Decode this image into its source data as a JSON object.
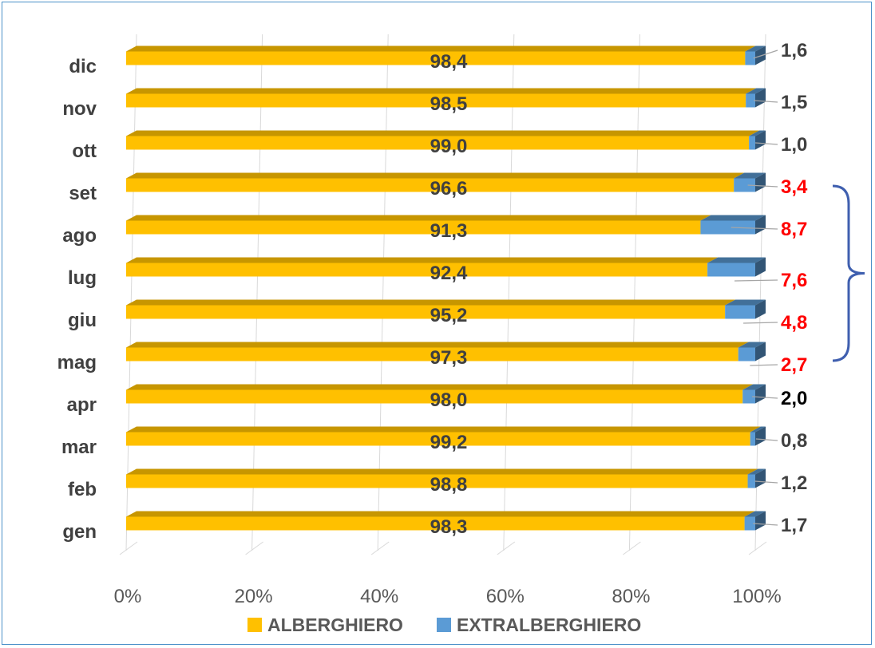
{
  "chart_data": {
    "type": "bar",
    "orientation": "horizontal",
    "stacked": "percent",
    "style": "3d",
    "categories": [
      "gen",
      "feb",
      "mar",
      "apr",
      "mag",
      "giu",
      "lug",
      "ago",
      "set",
      "ott",
      "nov",
      "dic"
    ],
    "series": [
      {
        "name": "ALBERGHIERO",
        "color": "#FFC000",
        "values": [
          98.3,
          98.8,
          99.2,
          98.0,
          97.3,
          95.2,
          92.4,
          91.3,
          96.6,
          99.0,
          98.5,
          98.4
        ],
        "labels": [
          "98,3",
          "98,8",
          "99,2",
          "98,0",
          "97,3",
          "95,2",
          "92,4",
          "91,3",
          "96,6",
          "99,0",
          "98,5",
          "98,4"
        ]
      },
      {
        "name": "EXTRALBERGHIERO",
        "color": "#5B9BD5",
        "values": [
          1.7,
          1.2,
          0.8,
          2.0,
          2.7,
          4.8,
          7.6,
          8.7,
          3.4,
          1.0,
          1.5,
          1.6
        ],
        "labels": [
          "1,7",
          "1,2",
          "0,8",
          "2,0",
          "2,7",
          "4,8",
          "7,6",
          "8,7",
          "3,4",
          "1,0",
          "1,5",
          "1,6"
        ],
        "label_colors": [
          "#404040",
          "#404040",
          "#404040",
          "#000000",
          "#FF0000",
          "#FF0000",
          "#FF0000",
          "#FF0000",
          "#FF0000",
          "#404040",
          "#404040",
          "#404040"
        ]
      }
    ],
    "x_ticks": [
      "0%",
      "20%",
      "40%",
      "60%",
      "80%",
      "100%"
    ],
    "xlim": [
      0,
      100
    ],
    "grid": true,
    "legend": "bottom",
    "annotation": "bracket grouping mag–set",
    "bracket_color": "#3F5FAF"
  }
}
